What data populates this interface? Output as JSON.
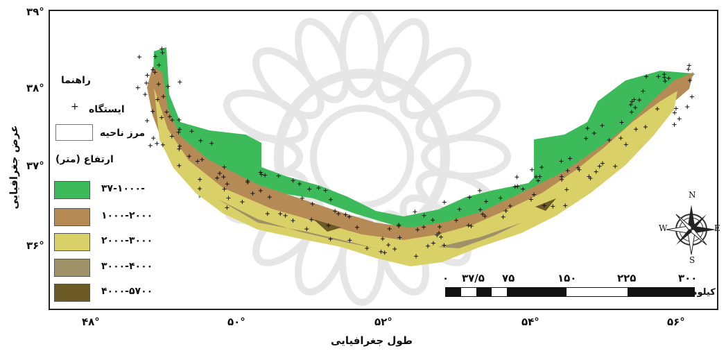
{
  "map": {
    "lat_ticks": [
      "۳۹°",
      "۳۸°",
      "۳۷°",
      "۳۶°"
    ],
    "lon_ticks": [
      "۴۸°",
      "۵۰°",
      "۵۲°",
      "۵۴°",
      "۵۶°"
    ],
    "y_axis_label": "عرض جغرافیایی",
    "x_axis_label": "طول جغرافیایی"
  },
  "legend": {
    "title": "راهنما",
    "station_label": "ایستگاه",
    "boundary_label": "مرز ناحیه",
    "elevation_title": "ارتفاع (متر)",
    "classes": [
      {
        "label": "-۳۷-۱۰۰۰",
        "color": "#3dbb5a"
      },
      {
        "label": "۱۰۰۰-۲۰۰۰",
        "color": "#b58a55"
      },
      {
        "label": "۲۰۰۰-۳۰۰۰",
        "color": "#d9d067"
      },
      {
        "label": "۳۰۰۰-۴۰۰۰",
        "color": "#a09268"
      },
      {
        "label": "۴۰۰۰-۵۷۰۰",
        "color": "#6b5a25"
      }
    ]
  },
  "scale_bar": {
    "labels": [
      "۰",
      "۳۷/۵",
      "۷۵",
      "۱۵۰",
      "۲۲۵",
      "۳۰۰"
    ],
    "unit": "کیلومتر"
  },
  "compass": {
    "n": "N",
    "s": "S",
    "e": "E",
    "w": "W"
  }
}
